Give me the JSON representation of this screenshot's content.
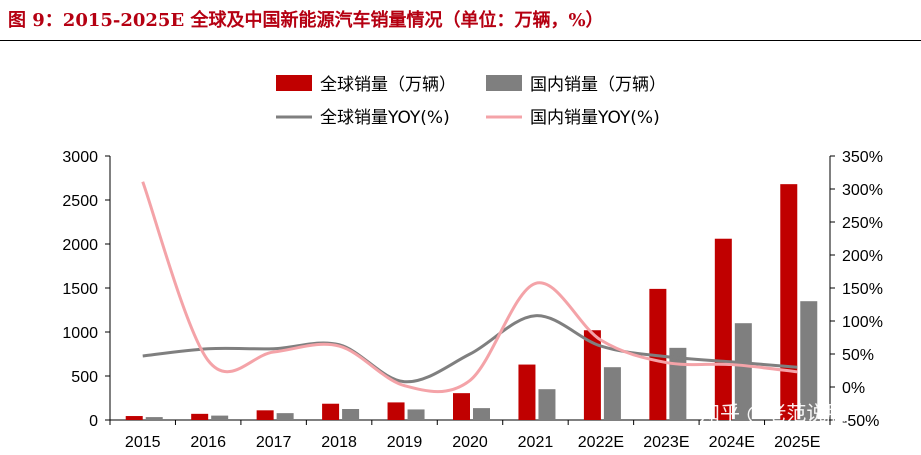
{
  "figure": {
    "title": "图 9：2015-2025E 全球及中国新能源汽车销量情况（单位：万辆，%）",
    "watermark": "知乎 @老范说股"
  },
  "colors": {
    "title": "#b50012",
    "global_bar": "#c00000",
    "china_bar": "#7f7f7f",
    "global_yoy_line": "#7f7f7f",
    "china_yoy_line": "#f4a3a8"
  },
  "chart_data": {
    "type": "bar",
    "categories": [
      "2015",
      "2016",
      "2017",
      "2018",
      "2019",
      "2020",
      "2021",
      "2022E",
      "2023E",
      "2024E",
      "2025E"
    ],
    "series": [
      {
        "name": "全球销量（万辆）",
        "kind": "bar",
        "axis": "left",
        "values": [
          45,
          70,
          110,
          185,
          200,
          305,
          630,
          1020,
          1490,
          2060,
          2680
        ]
      },
      {
        "name": "国内销量（万辆）",
        "kind": "bar",
        "axis": "left",
        "values": [
          33,
          50,
          78,
          125,
          120,
          135,
          350,
          600,
          820,
          1100,
          1350
        ]
      },
      {
        "name": "全球销量YOY(%)",
        "kind": "line",
        "axis": "right",
        "values": [
          47,
          58,
          58,
          64,
          8,
          50,
          108,
          62,
          46,
          38,
          30
        ]
      },
      {
        "name": "国内销量YOY(%)",
        "kind": "line",
        "axis": "right",
        "values": [
          311,
          40,
          53,
          62,
          2,
          10,
          157,
          71,
          37,
          34,
          23
        ]
      }
    ],
    "y_left": {
      "min": 0,
      "max": 3000,
      "ticks": [
        "0",
        "500",
        "1000",
        "1500",
        "2000",
        "2500",
        "3000"
      ]
    },
    "y_right": {
      "min": -50,
      "max": 350,
      "ticks": [
        "-50%",
        "0%",
        "50%",
        "100%",
        "150%",
        "200%",
        "250%",
        "300%",
        "350%"
      ]
    },
    "legend": {
      "placement": "top-center",
      "entries": [
        "全球销量（万辆）",
        "国内销量（万辆）",
        "全球销量YOY(%)",
        "国内销量YOY(%)"
      ]
    },
    "grid": false
  }
}
